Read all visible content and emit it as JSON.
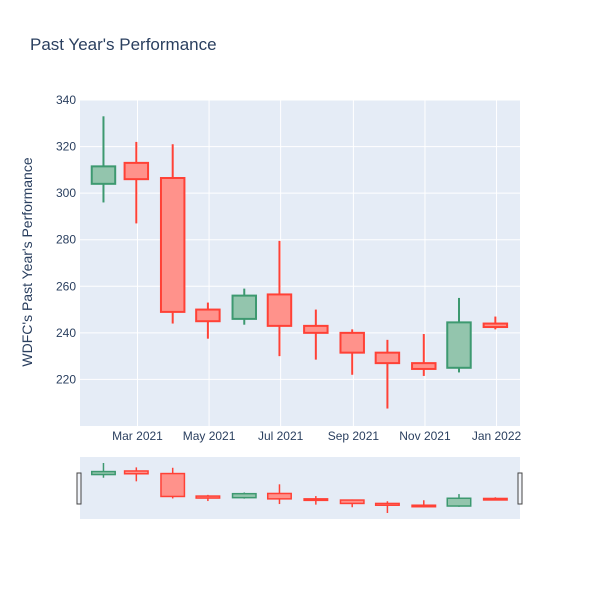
{
  "chart_data": {
    "type": "candlestick",
    "title": "Past Year's Performance",
    "xlabel": "",
    "ylabel": "WDFC's Past Year's Performance",
    "ylim": [
      200,
      340
    ],
    "y_ticks": [
      220,
      240,
      260,
      280,
      300,
      320,
      340
    ],
    "x_ticks": [
      {
        "date": "2021-03-01",
        "label": "Mar 2021"
      },
      {
        "date": "2021-05-01",
        "label": "May 2021"
      },
      {
        "date": "2021-07-01",
        "label": "Jul 2021"
      },
      {
        "date": "2021-09-01",
        "label": "Sep 2021"
      },
      {
        "date": "2021-11-01",
        "label": "Nov 2021"
      },
      {
        "date": "2022-01-01",
        "label": "Jan 2022"
      }
    ],
    "x_range": [
      "2021-01-11",
      "2022-01-21"
    ],
    "grid": true,
    "rangeslider": true,
    "colors": {
      "increasing_line": "#3d9970",
      "increasing_fill": "#93c5ad",
      "decreasing_line": "#ff4136",
      "decreasing_fill": "#ff928b",
      "plot_bg": "#e5ecf6",
      "grid": "#ffffff",
      "text": "#2a3f5f"
    },
    "candles": [
      {
        "date": "2021-01-31",
        "open": 304,
        "high": 333,
        "low": 296,
        "close": 311.5
      },
      {
        "date": "2021-02-28",
        "open": 313,
        "high": 322,
        "low": 287,
        "close": 306
      },
      {
        "date": "2021-03-31",
        "open": 306.5,
        "high": 321,
        "low": 244,
        "close": 249
      },
      {
        "date": "2021-04-30",
        "open": 250,
        "high": 253,
        "low": 237.5,
        "close": 245
      },
      {
        "date": "2021-05-31",
        "open": 246,
        "high": 259,
        "low": 243.5,
        "close": 256
      },
      {
        "date": "2021-06-30",
        "open": 256.5,
        "high": 279.5,
        "low": 230,
        "close": 243
      },
      {
        "date": "2021-07-31",
        "open": 243,
        "high": 250,
        "low": 228.5,
        "close": 240
      },
      {
        "date": "2021-08-31",
        "open": 240,
        "high": 241.5,
        "low": 222,
        "close": 231.5
      },
      {
        "date": "2021-09-30",
        "open": 231.5,
        "high": 237,
        "low": 207.5,
        "close": 227
      },
      {
        "date": "2021-10-31",
        "open": 227,
        "high": 239.5,
        "low": 221.5,
        "close": 224.5
      },
      {
        "date": "2021-11-30",
        "open": 225,
        "high": 255,
        "low": 223,
        "close": 244.5
      },
      {
        "date": "2021-12-31",
        "open": 244,
        "high": 247,
        "low": 241.5,
        "close": 242.5
      }
    ]
  }
}
